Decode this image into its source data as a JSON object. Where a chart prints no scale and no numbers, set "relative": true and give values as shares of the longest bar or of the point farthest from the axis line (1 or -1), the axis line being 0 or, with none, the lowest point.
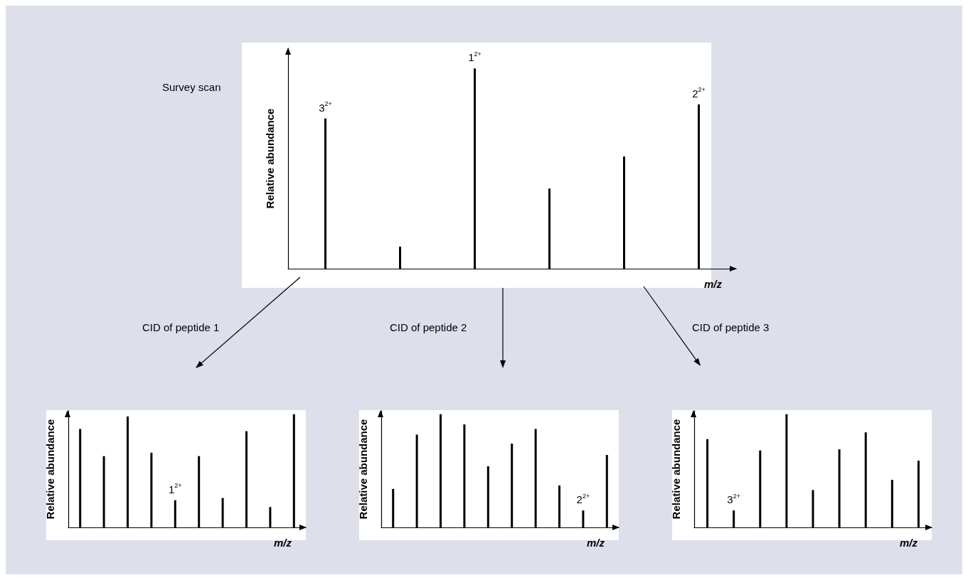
{
  "chart_data": [
    {
      "type": "bar",
      "relative": true,
      "color": "#000000",
      "xlabel": "m/z",
      "ylabel": "Relative abundance",
      "annotations": [
        "Survey scan",
        {
          "text": "3$^{2+}$",
          "y": 0.75
        },
        {
          "text": "1$^{2+}$",
          "y": 1
        },
        {
          "text": "2$^{2+}$",
          "y": 0.82
        }
      ],
      "categories": [
        null,
        null,
        null,
        null,
        null,
        null
      ],
      "values": [
        0.75,
        0.11,
        1,
        0.4,
        0.56,
        0.82
      ]
    },
    {
      "type": "bar",
      "relative": true,
      "color": "#000000",
      "title": "CID of peptide 1",
      "xlabel": "m/z",
      "ylabel": "Relative abundance",
      "annotations": [
        {
          "text": "1$^{2+}$",
          "y": 0.24
        }
      ],
      "categories": [
        null,
        null,
        null,
        null,
        null,
        null,
        null,
        null,
        null,
        null
      ],
      "values": [
        0.87,
        0.63,
        0.98,
        0.66,
        0.24,
        0.63,
        0.26,
        0.85,
        0.18,
        1
      ]
    },
    {
      "type": "bar",
      "relative": true,
      "color": "#000000",
      "title": "CID of peptide 2",
      "xlabel": "m/z",
      "ylabel": "Relative abundance",
      "annotations": [
        {
          "text": "2$^{2+}$",
          "y": 0.15
        }
      ],
      "categories": [
        null,
        null,
        null,
        null,
        null,
        null,
        null,
        null,
        null,
        null
      ],
      "values": [
        0.34,
        0.82,
        1,
        0.91,
        0.54,
        0.74,
        0.87,
        0.37,
        0.15,
        0.64
      ]
    },
    {
      "type": "bar",
      "relative": true,
      "color": "#000000",
      "title": "CID of peptide 3",
      "xlabel": "m/z",
      "ylabel": "Relative abundance",
      "annotations": [
        {
          "text": "3$^{2+}$",
          "y": 0.15
        }
      ],
      "categories": [
        null,
        null,
        null,
        null,
        null,
        null,
        null,
        null,
        null
      ],
      "values": [
        0.78,
        0.15,
        0.68,
        1,
        0.33,
        0.69,
        0.84,
        0.42,
        0.59
      ]
    }
  ]
}
